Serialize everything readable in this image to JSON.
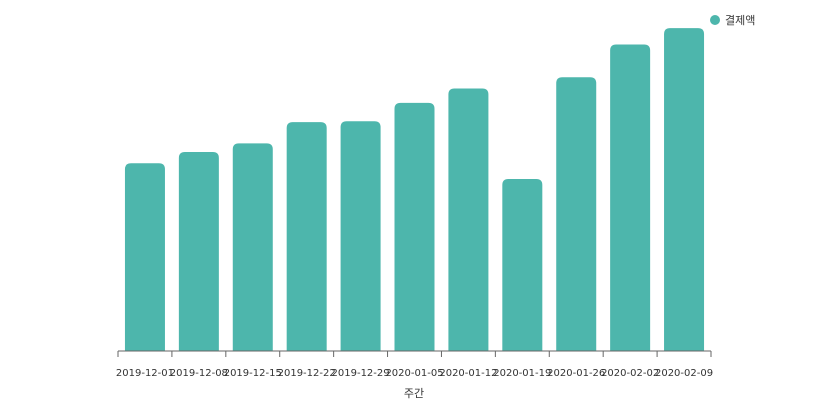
{
  "chart_data": {
    "type": "bar",
    "categories": [
      "2019-12-01",
      "2019-12-08",
      "2019-12-15",
      "2019-12-22",
      "2019-12-29",
      "2020-01-05",
      "2020-01-12",
      "2020-01-19",
      "2020-01-26",
      "2020-02-02",
      "2020-02-09"
    ],
    "series": [
      {
        "name": "결제액",
        "values": [
          58.5,
          62,
          64.7,
          71.3,
          71.6,
          77.3,
          81.8,
          53.6,
          85.3,
          95.5,
          100.6
        ]
      }
    ],
    "xlabel": "주간",
    "ylabel": "",
    "ylim": [
      0,
      105
    ],
    "grid": false,
    "legend": "top-right",
    "colors": {
      "bar": "#4db6ac",
      "axis": "#666666"
    }
  }
}
